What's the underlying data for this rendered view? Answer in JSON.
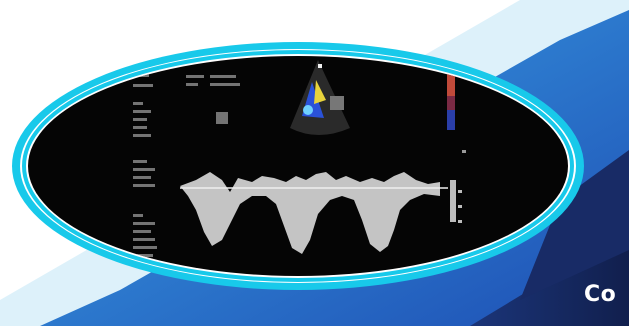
{
  "caption": {
    "text": "Co"
  },
  "colors": {
    "background": "#ffffff",
    "light_blue_band": "#c6e8f7",
    "mid_blue_band": "#3aa2e6",
    "deep_blue": "#1e4fb4",
    "navy": "#162a63",
    "cyan_ring": "#18c9ea",
    "white_ring": "#ffffff",
    "screen_black": "#050505",
    "waveform": "#d9d9d9"
  },
  "image": {
    "subject": "echocardiogram-doppler-screen",
    "elements": [
      "doppler-waveform",
      "color-doppler-sector",
      "color-scale-bar",
      "side-text-panel",
      "baseline-scale-ticks"
    ]
  }
}
